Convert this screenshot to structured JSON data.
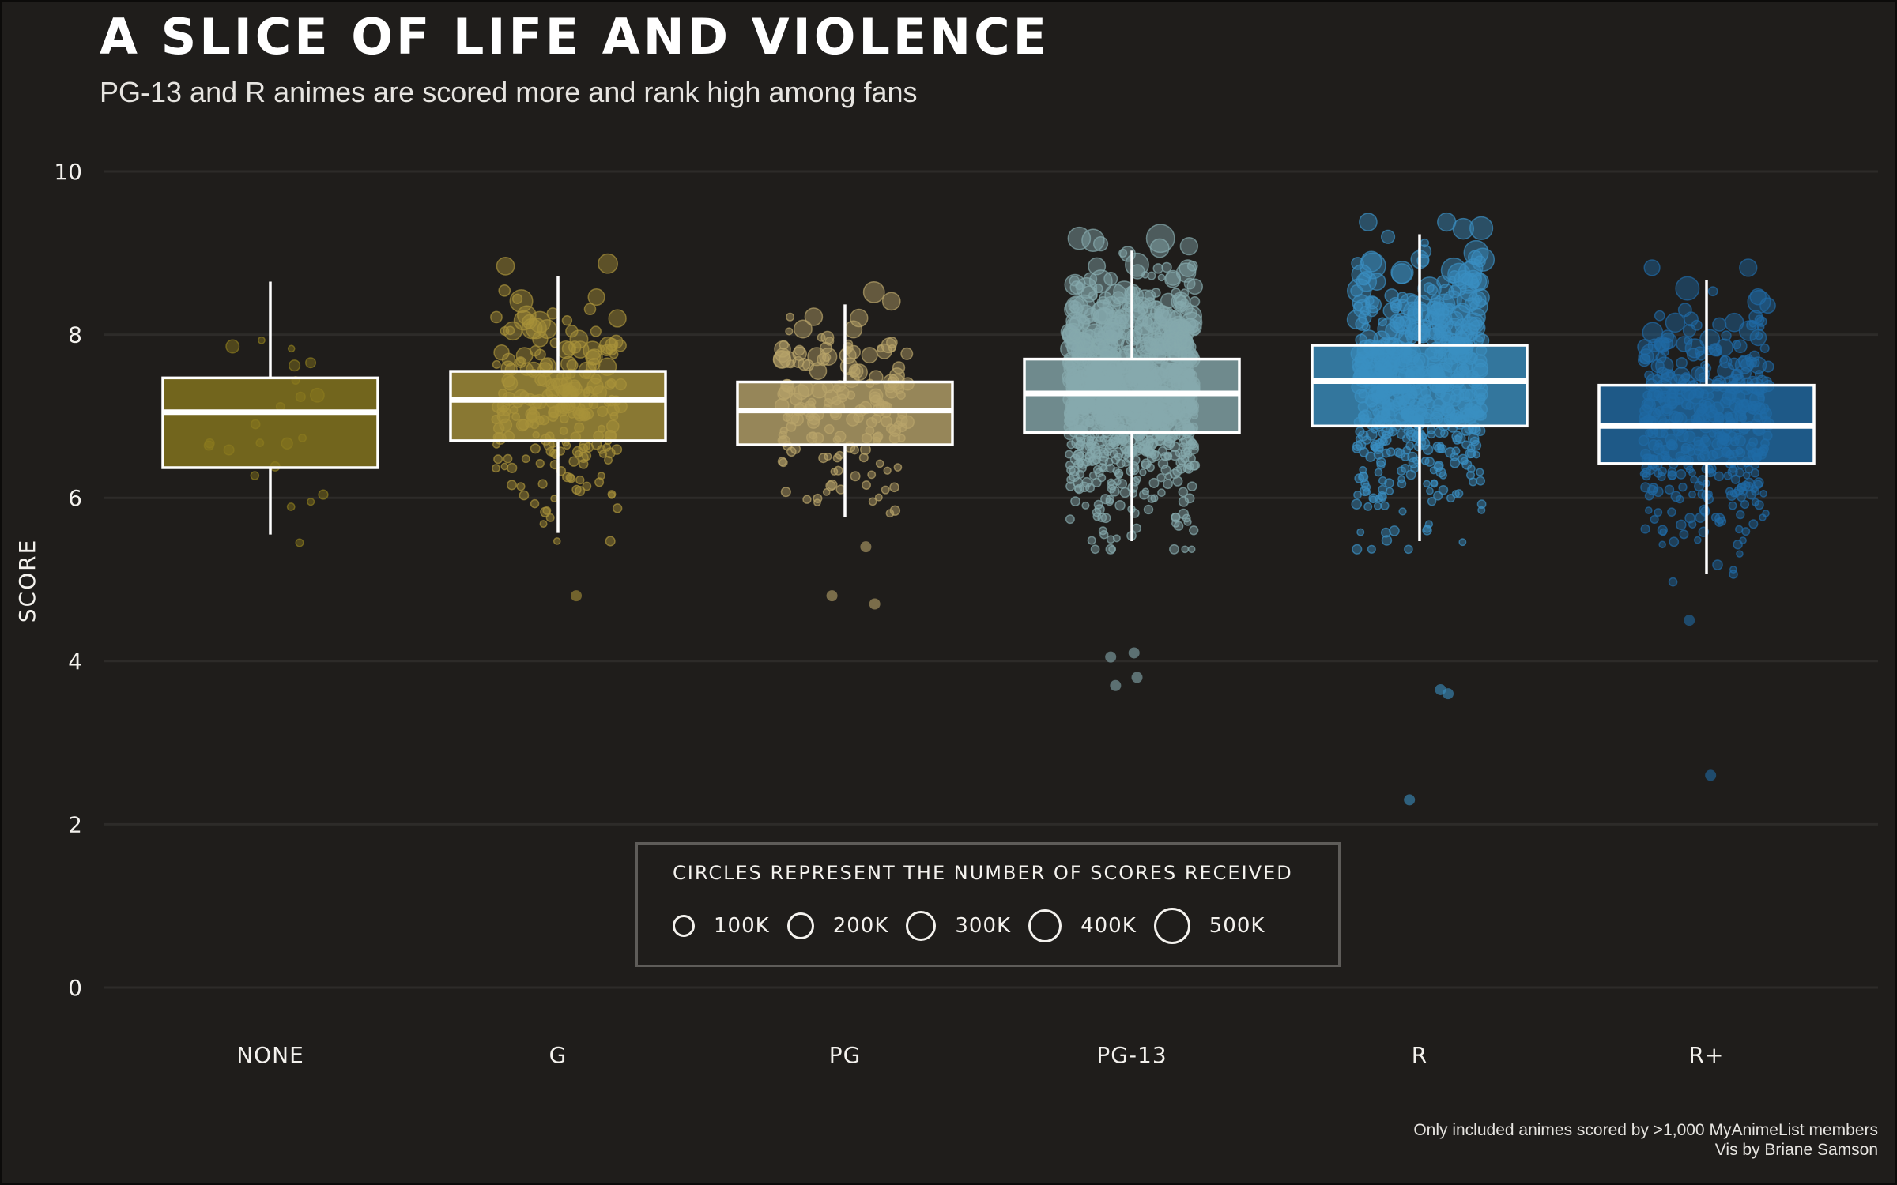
{
  "title": "A SLICE OF LIFE AND VIOLENCE",
  "subtitle": "PG-13 and R animes are scored more and rank high among fans",
  "caption": [
    "Only included animes scored by >1,000 MyAnimeList members",
    "Vis by Briane Samson"
  ],
  "legend": {
    "title": "CIRCLES REPRESENT THE NUMBER OF SCORES RECEIVED",
    "items": [
      "100K",
      "200K",
      "300K",
      "400K",
      "500K"
    ]
  },
  "chart_data": {
    "type": "boxplot",
    "ylabel": "SCORE",
    "xlabel": "",
    "ylim": [
      0,
      10
    ],
    "yticks": [
      0,
      2,
      4,
      6,
      8,
      10
    ],
    "grid": true,
    "categories": [
      "NONE",
      "G",
      "PG",
      "PG-13",
      "R",
      "R+"
    ],
    "colors": [
      "#8a7a1e",
      "#a8923a",
      "#b8a46a",
      "#86a9ad",
      "#3a8fc2",
      "#1f6aa5"
    ],
    "boxes": [
      {
        "category": "NONE",
        "whisker_low": 5.55,
        "q1": 6.37,
        "median": 7.05,
        "q3": 7.47,
        "whisker_high": 8.65
      },
      {
        "category": "G",
        "whisker_low": 5.57,
        "q1": 6.7,
        "median": 7.2,
        "q3": 7.55,
        "whisker_high": 8.72
      },
      {
        "category": "PG",
        "whisker_low": 5.77,
        "q1": 6.65,
        "median": 7.07,
        "q3": 7.42,
        "whisker_high": 8.37
      },
      {
        "category": "PG-13",
        "whisker_low": 5.47,
        "q1": 6.8,
        "median": 7.28,
        "q3": 7.7,
        "whisker_high": 9.03
      },
      {
        "category": "R",
        "whisker_low": 5.47,
        "q1": 6.88,
        "median": 7.43,
        "q3": 7.87,
        "whisker_high": 9.23
      },
      {
        "category": "R+",
        "whisker_low": 5.07,
        "q1": 6.42,
        "median": 6.88,
        "q3": 7.38,
        "whisker_high": 8.67
      }
    ],
    "outliers": {
      "G": [
        4.8
      ],
      "PG": [
        4.8,
        4.7,
        5.4
      ],
      "PG-13": [
        3.7,
        3.8,
        4.05,
        4.1
      ],
      "R": [
        2.3,
        3.6,
        3.65
      ],
      "R+": [
        2.6,
        4.5
      ]
    },
    "point_counts": {
      "NONE": 22,
      "G": 230,
      "PG": 170,
      "PG-13": 1100,
      "R": 620,
      "R+": 420
    }
  }
}
